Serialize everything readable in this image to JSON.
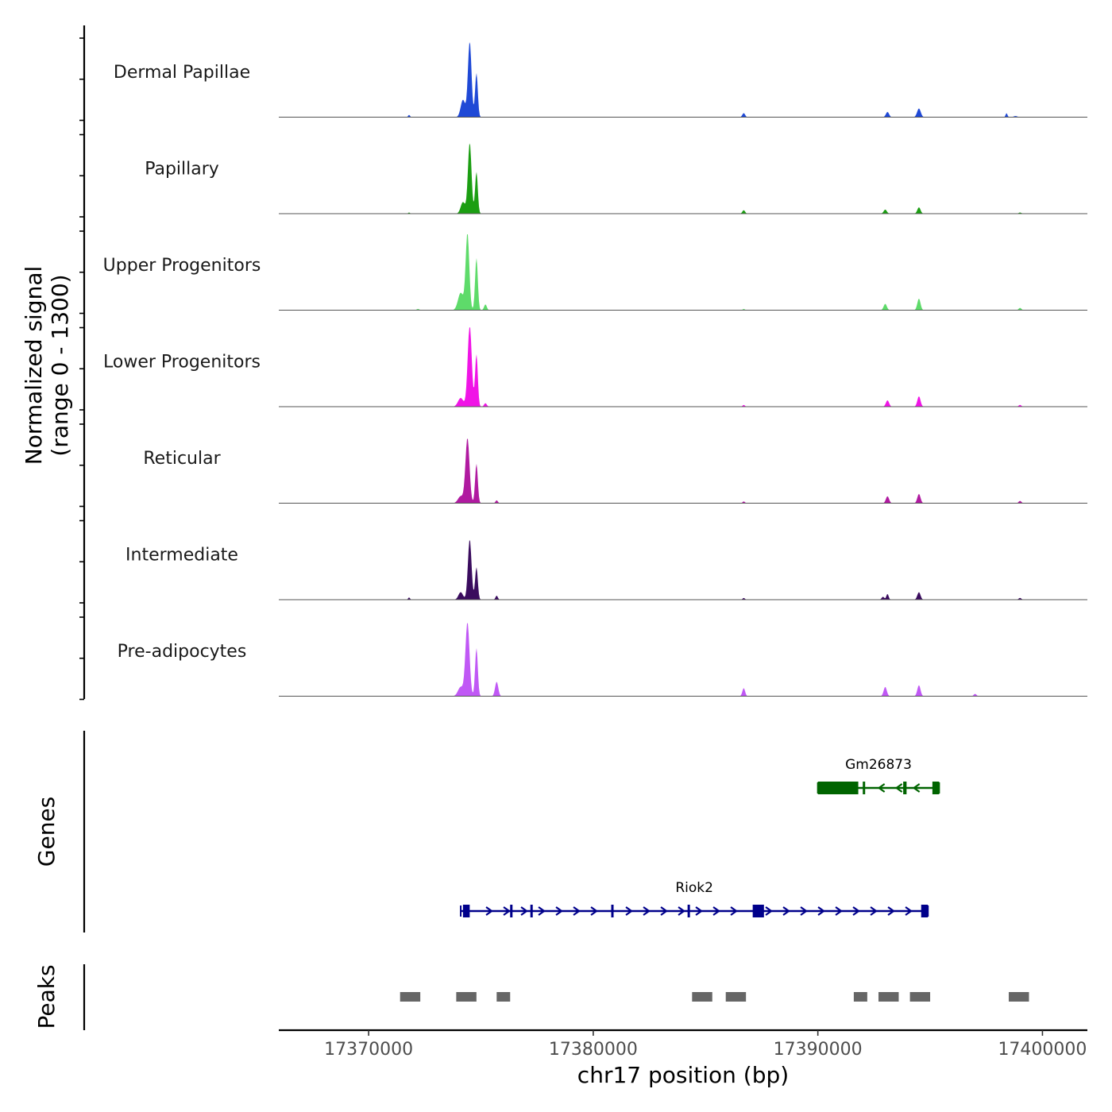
{
  "chart_data": {
    "type": "area",
    "title": "",
    "ylabel_line1": "Normalized signal",
    "ylabel_line2": "(range 0 - 1300)",
    "ylim": [
      0,
      1300
    ],
    "xlabel": "chr17 position (bp)",
    "xlim": [
      17366000,
      17402000
    ],
    "xticks": [
      17370000,
      17380000,
      17390000,
      17400000
    ],
    "xtick_labels": [
      "17370000",
      "17380000",
      "17390000",
      "17400000"
    ],
    "tracks": [
      {
        "name": "Dermal Papillae",
        "color": "#1f49d6",
        "peaks": [
          [
            17374500,
            1300,
            80
          ],
          [
            17374800,
            760,
            60
          ],
          [
            17374200,
            300,
            100
          ],
          [
            17371800,
            40,
            40
          ],
          [
            17386700,
            70,
            60
          ],
          [
            17393100,
            90,
            70
          ],
          [
            17394500,
            150,
            80
          ],
          [
            17398400,
            70,
            40
          ],
          [
            17398800,
            20,
            80
          ]
        ]
      },
      {
        "name": "Papillary",
        "color": "#1b9e12",
        "peaks": [
          [
            17374500,
            1220,
            80
          ],
          [
            17374800,
            720,
            60
          ],
          [
            17374200,
            200,
            100
          ],
          [
            17371800,
            20,
            40
          ],
          [
            17386700,
            60,
            60
          ],
          [
            17393000,
            70,
            70
          ],
          [
            17394500,
            110,
            70
          ],
          [
            17399000,
            20,
            60
          ]
        ]
      },
      {
        "name": "Upper Progenitors",
        "color": "#5edb6a",
        "peaks": [
          [
            17374400,
            1320,
            80
          ],
          [
            17374800,
            900,
            60
          ],
          [
            17374100,
            300,
            120
          ],
          [
            17375200,
            100,
            60
          ],
          [
            17372200,
            20,
            60
          ],
          [
            17386700,
            20,
            50
          ],
          [
            17393000,
            110,
            70
          ],
          [
            17394500,
            200,
            70
          ],
          [
            17399000,
            40,
            60
          ]
        ]
      },
      {
        "name": "Lower Progenitors",
        "color": "#f014e6",
        "peaks": [
          [
            17374500,
            1400,
            90
          ],
          [
            17374800,
            900,
            60
          ],
          [
            17374100,
            150,
            120
          ],
          [
            17375200,
            60,
            60
          ],
          [
            17386700,
            30,
            50
          ],
          [
            17393100,
            110,
            70
          ],
          [
            17394500,
            180,
            70
          ],
          [
            17399000,
            30,
            60
          ]
        ]
      },
      {
        "name": "Reticular",
        "color": "#b01aa0",
        "peaks": [
          [
            17374400,
            1120,
            90
          ],
          [
            17374800,
            680,
            60
          ],
          [
            17374100,
            120,
            120
          ],
          [
            17375700,
            50,
            50
          ],
          [
            17386700,
            30,
            50
          ],
          [
            17393100,
            120,
            70
          ],
          [
            17394500,
            160,
            70
          ],
          [
            17399000,
            40,
            60
          ]
        ]
      },
      {
        "name": "Intermediate",
        "color": "#3a0c5e",
        "peaks": [
          [
            17374500,
            1040,
            80
          ],
          [
            17374800,
            560,
            60
          ],
          [
            17374100,
            130,
            100
          ],
          [
            17375700,
            70,
            50
          ],
          [
            17371800,
            40,
            40
          ],
          [
            17386700,
            30,
            50
          ],
          [
            17392900,
            50,
            60
          ],
          [
            17393100,
            100,
            50
          ],
          [
            17394500,
            130,
            70
          ],
          [
            17399000,
            30,
            60
          ]
        ]
      },
      {
        "name": "Pre-adipocytes",
        "color": "#c058f5",
        "peaks": [
          [
            17374400,
            1270,
            90
          ],
          [
            17374800,
            830,
            60
          ],
          [
            17374100,
            160,
            120
          ],
          [
            17375700,
            250,
            70
          ],
          [
            17386700,
            140,
            60
          ],
          [
            17393000,
            160,
            70
          ],
          [
            17394500,
            190,
            70
          ],
          [
            17397000,
            40,
            60
          ]
        ]
      }
    ],
    "genes_label": "Genes",
    "genes": [
      {
        "name": "Gm26873",
        "color": "#006400",
        "strand": "-",
        "start": 17390000,
        "end": 17395400,
        "exons": [
          [
            17390000,
            17391800
          ],
          [
            17392000,
            17392100
          ],
          [
            17393800,
            17393950
          ],
          [
            17395100,
            17395400
          ]
        ]
      },
      {
        "name": "Riok2",
        "color": "#00008b",
        "strand": "+",
        "start": 17374100,
        "end": 17394900,
        "exons": [
          [
            17374200,
            17374500
          ],
          [
            17376300,
            17376350
          ],
          [
            17377200,
            17377250
          ],
          [
            17380800,
            17380900
          ],
          [
            17384200,
            17384300
          ],
          [
            17387100,
            17387600
          ],
          [
            17394600,
            17394900
          ]
        ]
      }
    ],
    "peaks_label": "Peaks",
    "peak_regions": [
      [
        17371400,
        17372300
      ],
      [
        17373900,
        17374800
      ],
      [
        17375700,
        17376300
      ],
      [
        17384400,
        17385300
      ],
      [
        17385900,
        17386800
      ],
      [
        17391600,
        17392200
      ],
      [
        17392700,
        17393600
      ],
      [
        17394100,
        17395000
      ],
      [
        17398500,
        17399400
      ]
    ]
  }
}
